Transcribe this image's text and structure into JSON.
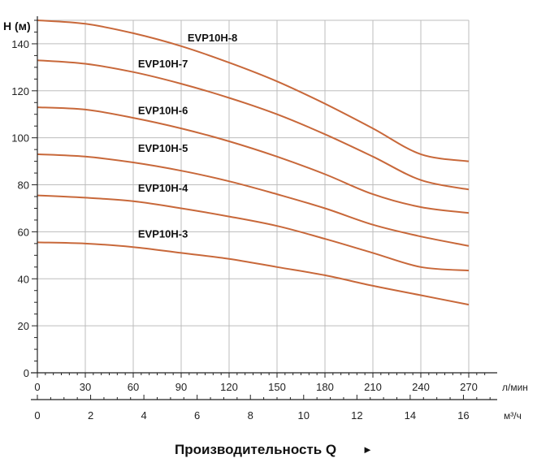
{
  "chart_data": {
    "type": "line",
    "ylabel": "H (м)",
    "xlabel": "Производительность Q",
    "xlabel_arrow": "►",
    "x_primary_unit": "л/мин",
    "x_secondary_unit": "м³/ч",
    "xlim": [
      0,
      270
    ],
    "ylim": [
      0,
      150
    ],
    "x_ticks": [
      0,
      30,
      60,
      90,
      120,
      150,
      180,
      210,
      240,
      270
    ],
    "x_ticks_secondary": [
      0,
      2,
      4,
      6,
      8,
      10,
      12,
      14,
      16
    ],
    "y_ticks": [
      0,
      20,
      40,
      60,
      80,
      100,
      120,
      140
    ],
    "grid": true,
    "line_color": "#c8683a",
    "series": [
      {
        "name": "EVP10H-3",
        "x": [
          0,
          30,
          60,
          90,
          120,
          150,
          180,
          210,
          240,
          270
        ],
        "y": [
          55.5,
          55,
          53.5,
          51,
          48.5,
          45,
          41.5,
          37,
          33,
          29
        ]
      },
      {
        "name": "EVP10H-4",
        "x": [
          0,
          30,
          60,
          90,
          120,
          150,
          180,
          210,
          240,
          270
        ],
        "y": [
          75.5,
          74.5,
          73,
          70,
          66.5,
          62.5,
          57,
          51,
          45,
          43.5
        ]
      },
      {
        "name": "EVP10H-5",
        "x": [
          0,
          30,
          60,
          90,
          120,
          150,
          180,
          210,
          240,
          270
        ],
        "y": [
          93,
          92,
          89.5,
          86,
          81.5,
          76,
          70,
          63,
          58,
          54
        ]
      },
      {
        "name": "EVP10H-6",
        "x": [
          0,
          30,
          60,
          90,
          120,
          150,
          180,
          210,
          240,
          270
        ],
        "y": [
          113,
          112,
          108.5,
          104,
          98.5,
          92,
          84.5,
          76,
          70.5,
          68
        ]
      },
      {
        "name": "EVP10H-7",
        "x": [
          0,
          30,
          60,
          90,
          120,
          150,
          180,
          210,
          240,
          270
        ],
        "y": [
          133,
          131.5,
          128,
          123,
          117,
          110,
          101.5,
          92,
          82,
          78
        ]
      },
      {
        "name": "EVP10H-8",
        "x": [
          0,
          30,
          60,
          90,
          120,
          150,
          180,
          210,
          240,
          270
        ],
        "y": [
          150,
          148.5,
          144.5,
          139,
          132,
          124,
          114.5,
          104,
          93,
          90
        ]
      }
    ]
  }
}
